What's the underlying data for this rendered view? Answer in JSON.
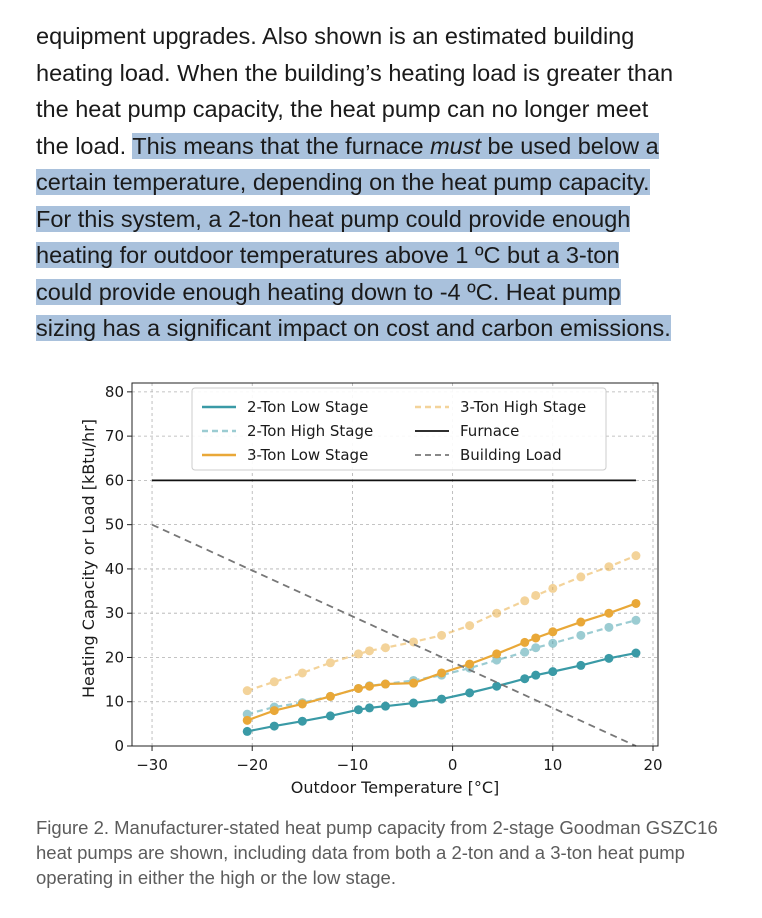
{
  "body_text": {
    "lines": [
      {
        "plain": "equipment upgrades. Also shown is an estimated building",
        "highlighted": ""
      },
      {
        "plain": "heating load. When the building’s heating load is greater than",
        "highlighted": ""
      },
      {
        "plain": "the heat pump capacity, the heat pump can no longer meet",
        "highlighted": ""
      },
      {
        "plain": "the load. ",
        "highlighted_pre": "This means that the furnace ",
        "highlighted_em": "must",
        "highlighted_post": " be used below a"
      },
      {
        "plain": "",
        "highlighted": "certain temperature, depending on the heat pump capacity."
      },
      {
        "plain": "",
        "highlighted": "For this system, a 2-ton heat pump could provide enough"
      },
      {
        "plain": "",
        "highlighted": "heating for outdoor temperatures above 1 ºC but a 3-ton"
      },
      {
        "plain": "",
        "highlighted": "could provide enough heating down to -4 ºC. Heat pump"
      },
      {
        "plain": "",
        "highlighted": "sizing has a significant impact on cost and carbon emissions."
      }
    ]
  },
  "chart_data": {
    "type": "line",
    "xlabel": "Outdoor Temperature [°C]",
    "ylabel": "Heating Capacity or Load [kBtu/hr]",
    "xlim": [
      -32,
      20.5
    ],
    "ylim": [
      0,
      82
    ],
    "xticks": [
      -30,
      -20,
      -10,
      0,
      10,
      20
    ],
    "xtick_labels": [
      "−30",
      "−20",
      "−10",
      "0",
      "10",
      "20"
    ],
    "yticks": [
      0,
      10,
      20,
      30,
      40,
      50,
      60,
      70,
      80
    ],
    "ytick_labels": [
      "0",
      "10",
      "20",
      "30",
      "40",
      "50",
      "60",
      "70",
      "80"
    ],
    "grid": true,
    "legend_placement": "top",
    "series": [
      {
        "name": "2-Ton Low Stage",
        "color": "#3a9aa6",
        "style": "solid",
        "markers": true,
        "opacity": 1,
        "x": [
          -20.5,
          -17.8,
          -15,
          -12.2,
          -9.4,
          -8.3,
          -6.7,
          -3.9,
          -1.1,
          1.7,
          4.4,
          7.2,
          8.3,
          10,
          12.8,
          15.6,
          18.3
        ],
        "y": [
          3.3,
          4.5,
          5.6,
          6.8,
          8.2,
          8.6,
          9,
          9.7,
          10.6,
          12,
          13.5,
          15.2,
          16,
          16.8,
          18.2,
          19.8,
          21
        ]
      },
      {
        "name": "2-Ton High Stage",
        "color": "#3a9aa6",
        "style": "dashed",
        "markers": true,
        "opacity": 0.5,
        "x": [
          -20.5,
          -17.8,
          -15,
          -12.2,
          -9.4,
          -8.3,
          -6.7,
          -3.9,
          -1.1,
          1.7,
          4.4,
          7.2,
          8.3,
          10,
          12.8,
          15.6,
          18.3
        ],
        "y": [
          7.2,
          8.8,
          9.8,
          11.2,
          13,
          13.6,
          14,
          14.8,
          16,
          17.6,
          19.4,
          21.2,
          22.2,
          23.2,
          25,
          26.8,
          28.4
        ]
      },
      {
        "name": "3-Ton Low Stage",
        "color": "#e9a838",
        "style": "solid",
        "markers": true,
        "opacity": 1,
        "x": [
          -20.5,
          -17.8,
          -15,
          -12.2,
          -9.4,
          -8.3,
          -6.7,
          -3.9,
          -1.1,
          1.7,
          4.4,
          7.2,
          8.3,
          10,
          12.8,
          15.6,
          18.3
        ],
        "y": [
          5.8,
          8,
          9.5,
          11.2,
          13,
          13.5,
          14,
          14.2,
          16.5,
          18.5,
          20.8,
          23.4,
          24.4,
          25.8,
          28,
          30,
          32.2
        ]
      },
      {
        "name": "3-Ton High Stage",
        "color": "#e9a838",
        "style": "dashed",
        "markers": true,
        "opacity": 0.5,
        "x": [
          -20.5,
          -17.8,
          -15,
          -12.2,
          -9.4,
          -8.3,
          -6.7,
          -3.9,
          -1.1,
          1.7,
          4.4,
          7.2,
          8.3,
          10,
          12.8,
          15.6,
          18.3
        ],
        "y": [
          12.5,
          14.5,
          16.5,
          18.8,
          20.8,
          21.5,
          22.2,
          23.5,
          25,
          27.2,
          30,
          32.8,
          34,
          35.6,
          38.2,
          40.5,
          43
        ]
      },
      {
        "name": "Furnace",
        "color": "#111111",
        "style": "solid",
        "markers": false,
        "opacity": 1,
        "x": [
          -30,
          18.3
        ],
        "y": [
          60,
          60
        ]
      },
      {
        "name": "Building Load",
        "color": "#777777",
        "style": "dashed",
        "markers": false,
        "opacity": 1,
        "x": [
          -30,
          18.3
        ],
        "y": [
          50,
          0
        ]
      }
    ],
    "legend_order": [
      "2-Ton Low Stage",
      "2-Ton High Stage",
      "3-Ton Low Stage",
      "3-Ton High Stage",
      "Furnace",
      "Building Load"
    ]
  },
  "caption": {
    "lines": [
      "Figure 2. Manufacturer-stated heat pump capacity from 2-stage Goodman GSZC16",
      "heat pumps are shown, including data from both a 2-ton and a 3-ton heat pump",
      "operating in either the high or the low stage."
    ]
  }
}
